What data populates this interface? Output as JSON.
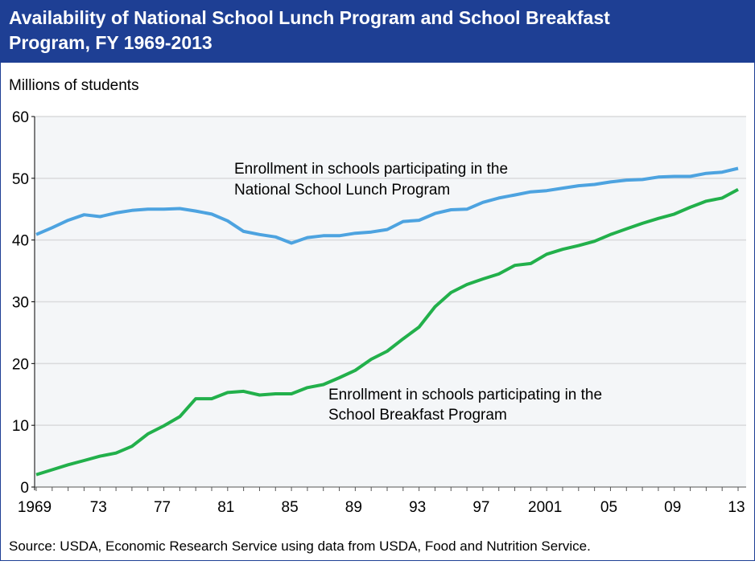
{
  "chart_data": {
    "type": "line",
    "title": "Availability of National School Lunch Program and School Breakfast Program, FY 1969-2013",
    "title_lines": [
      "Availability of National School Lunch Program and School Breakfast",
      "Program, FY 1969-2013"
    ],
    "ylabel": "Millions of students",
    "xlabel": "",
    "ylim": [
      0,
      60
    ],
    "yticks": [
      0,
      10,
      20,
      30,
      40,
      50,
      60
    ],
    "xlim": [
      1969,
      2013
    ],
    "xtick_values": [
      1969,
      1973,
      1977,
      1981,
      1985,
      1989,
      1993,
      1997,
      2001,
      2005,
      2009,
      2013
    ],
    "xtick_labels": [
      "1969",
      "73",
      "77",
      "81",
      "85",
      "89",
      "93",
      "97",
      "2001",
      "05",
      "09",
      "13"
    ],
    "grid": true,
    "x": [
      1969,
      1970,
      1971,
      1972,
      1973,
      1974,
      1975,
      1976,
      1977,
      1978,
      1979,
      1980,
      1981,
      1982,
      1983,
      1984,
      1985,
      1986,
      1987,
      1988,
      1989,
      1990,
      1991,
      1992,
      1993,
      1994,
      1995,
      1996,
      1997,
      1998,
      1999,
      2000,
      2001,
      2002,
      2003,
      2004,
      2005,
      2006,
      2007,
      2008,
      2009,
      2010,
      2011,
      2012,
      2013
    ],
    "series": [
      {
        "annotation_lines": [
          "Enrollment in schools participating in the",
          "National School Lunch Program"
        ],
        "color": "#4da3e0",
        "values": [
          40.9,
          42.0,
          43.2,
          44.1,
          43.8,
          44.4,
          44.8,
          45.0,
          45.0,
          45.1,
          44.7,
          44.2,
          43.1,
          41.4,
          40.9,
          40.5,
          39.5,
          40.4,
          40.7,
          40.7,
          41.1,
          41.3,
          41.7,
          43.0,
          43.2,
          44.3,
          44.9,
          45.0,
          46.1,
          46.8,
          47.3,
          47.8,
          48.0,
          48.4,
          48.8,
          49.0,
          49.4,
          49.7,
          49.8,
          50.2,
          50.3,
          50.3,
          50.8,
          51.0,
          51.6
        ]
      },
      {
        "annotation_lines": [
          "Enrollment in schools participating in the",
          "School Breakfast Program"
        ],
        "color": "#22b04b",
        "values": [
          2.0,
          2.8,
          3.6,
          4.3,
          5.0,
          5.5,
          6.6,
          8.6,
          9.9,
          11.4,
          14.3,
          14.3,
          15.3,
          15.5,
          14.9,
          15.1,
          15.1,
          16.1,
          16.6,
          17.7,
          18.9,
          20.7,
          22.0,
          24.0,
          25.9,
          29.2,
          31.5,
          32.8,
          33.7,
          34.5,
          35.9,
          36.2,
          37.7,
          38.5,
          39.1,
          39.8,
          40.9,
          41.8,
          42.7,
          43.5,
          44.2,
          45.3,
          46.3,
          46.8,
          48.2
        ]
      }
    ],
    "source": "Source: USDA, Economic Research Service using data from USDA, Food and Nutrition Service.",
    "colors": {
      "title_bar": "#1e3f94",
      "plot_background": "#f4f6f8",
      "gridline": "#d9dadc"
    }
  }
}
